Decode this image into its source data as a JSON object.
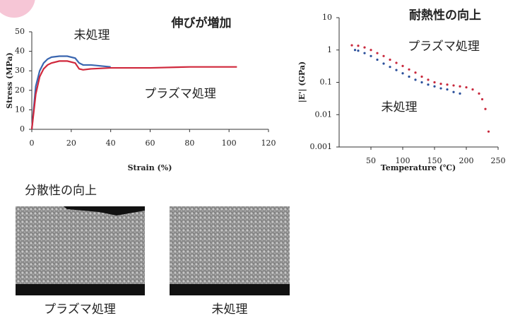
{
  "chart_data": [
    {
      "type": "line",
      "title": "伸びが増加",
      "x_label": "Strain (%)",
      "y_label": "Stress (MPa)",
      "xlim": [
        0,
        120
      ],
      "xticks": [
        0,
        20,
        40,
        60,
        80,
        100,
        120
      ],
      "ylim": [
        0,
        50
      ],
      "yticks": [
        0,
        10,
        20,
        30,
        40,
        50
      ],
      "log_y": false,
      "grid": false,
      "series": [
        {
          "name": "未処理",
          "color": "#3a66b0",
          "x": [
            0,
            2,
            4,
            6,
            8,
            10,
            14,
            18,
            22,
            24,
            26,
            30,
            35,
            40
          ],
          "values": [
            0,
            22,
            30,
            34,
            36,
            37,
            37.5,
            37.5,
            36.5,
            34,
            33,
            33,
            32.5,
            32
          ]
        },
        {
          "name": "プラズマ処理",
          "color": "#d0283c",
          "x": [
            0,
            2,
            4,
            6,
            8,
            10,
            14,
            18,
            22,
            24,
            26,
            30,
            40,
            60,
            80,
            104
          ],
          "values": [
            0,
            18,
            27,
            31,
            33,
            34,
            35,
            35,
            34,
            31,
            30.5,
            31,
            31.5,
            31.5,
            32,
            32
          ]
        }
      ]
    },
    {
      "type": "scatter",
      "title": "耐熱性の向上",
      "x_label": "Temperature (℃)",
      "y_label": "|E'| (GPa)",
      "xlim": [
        0,
        250
      ],
      "xticks": [
        50,
        100,
        150,
        200,
        250
      ],
      "ylim": [
        0.001,
        10
      ],
      "yticks": [
        0.001,
        0.01,
        0.1,
        1,
        10
      ],
      "log_y": true,
      "grid": false,
      "series": [
        {
          "name": "プラズマ処理",
          "color": "#c8283c",
          "x": [
            20,
            30,
            40,
            50,
            60,
            70,
            80,
            90,
            100,
            110,
            120,
            130,
            140,
            150,
            160,
            170,
            180,
            190,
            200,
            210,
            220,
            225,
            230,
            235
          ],
          "values": [
            1.4,
            1.35,
            1.2,
            1.0,
            0.8,
            0.65,
            0.5,
            0.4,
            0.32,
            0.25,
            0.2,
            0.15,
            0.12,
            0.1,
            0.09,
            0.085,
            0.08,
            0.075,
            0.07,
            0.06,
            0.045,
            0.03,
            0.015,
            0.003
          ]
        },
        {
          "name": "未処理",
          "color": "#2a4f9a",
          "x": [
            25,
            30,
            40,
            50,
            60,
            70,
            80,
            90,
            100,
            110,
            120,
            130,
            140,
            150,
            160,
            170,
            180,
            190
          ],
          "values": [
            1.0,
            0.95,
            0.8,
            0.65,
            0.5,
            0.38,
            0.3,
            0.24,
            0.19,
            0.15,
            0.12,
            0.1,
            0.085,
            0.075,
            0.065,
            0.06,
            0.05,
            0.045
          ]
        }
      ]
    }
  ],
  "images": {
    "title": "分散性の向上",
    "items": [
      {
        "caption": "プラズマ処理"
      },
      {
        "caption": "未処理"
      }
    ]
  }
}
